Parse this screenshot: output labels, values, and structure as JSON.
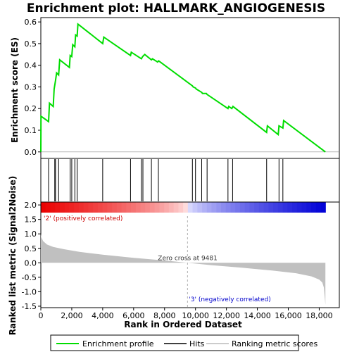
{
  "chart_data": {
    "type": "line",
    "title": "Enrichment plot: HALLMARK_ANGIOGENESIS",
    "es_panel": {
      "ylabel": "Enrichment score (ES)",
      "ylim": [
        -0.03,
        0.62
      ],
      "yticks": [
        "0.0",
        "0.1",
        "0.2",
        "0.3",
        "0.4",
        "0.5",
        "0.6"
      ],
      "ytick_values": [
        0.0,
        0.1,
        0.2,
        0.3,
        0.4,
        0.5,
        0.6
      ],
      "x": [
        0,
        10,
        500,
        560,
        800,
        860,
        950,
        1020,
        1150,
        1220,
        1850,
        1900,
        2000,
        2060,
        2200,
        2250,
        2350,
        2400,
        4000,
        4070,
        5800,
        5850,
        6500,
        6580,
        6650,
        6720,
        7150,
        7220,
        7550,
        7620,
        9800,
        9850,
        10000,
        10050,
        10400,
        10450,
        10700,
        10750,
        12100,
        12150,
        12350,
        12420,
        14600,
        14650,
        15350,
        15400,
        15650,
        15700,
        18400
      ],
      "y": [
        0.0,
        0.165,
        0.14,
        0.225,
        0.21,
        0.29,
        0.33,
        0.365,
        0.355,
        0.425,
        0.39,
        0.445,
        0.44,
        0.495,
        0.485,
        0.54,
        0.535,
        0.59,
        0.5,
        0.53,
        0.445,
        0.46,
        0.43,
        0.44,
        0.445,
        0.45,
        0.425,
        0.43,
        0.415,
        0.42,
        0.305,
        0.3,
        0.295,
        0.29,
        0.275,
        0.27,
        0.27,
        0.265,
        0.2,
        0.21,
        0.2,
        0.21,
        0.09,
        0.12,
        0.08,
        0.12,
        0.11,
        0.145,
        0.0
      ]
    },
    "hits": [
      500,
      900,
      950,
      1150,
      1900,
      2000,
      2200,
      2350,
      4000,
      5800,
      6500,
      6600,
      7150,
      7600,
      9800,
      10000,
      10400,
      10750,
      12100,
      12400,
      14600,
      15400,
      15650
    ],
    "ranking_panel": {
      "ylabel": "Ranked list metric (Signal2Noise)",
      "ylim": [
        -1.55,
        2.1
      ],
      "yticks": [
        "2.0",
        "1.5",
        "1.0",
        "0.5",
        "0.0",
        "-0.5",
        "-1.0",
        "-1.5"
      ],
      "ytick_values": [
        2.0,
        1.5,
        1.0,
        0.5,
        0.0,
        -0.5,
        -1.0,
        -1.5
      ],
      "x": [
        0,
        30,
        150,
        400,
        800,
        1500,
        2500,
        4000,
        6000,
        8000,
        9481,
        11000,
        13000,
        15000,
        16500,
        17500,
        18000,
        18200,
        18300,
        18400
      ],
      "y": [
        1.0,
        0.88,
        0.75,
        0.63,
        0.55,
        0.47,
        0.38,
        0.28,
        0.17,
        0.08,
        0.0,
        -0.08,
        -0.17,
        -0.27,
        -0.36,
        -0.47,
        -0.58,
        -0.68,
        -0.85,
        -1.45
      ]
    },
    "xlabel": "Rank in Ordered Dataset",
    "xlim": [
      0,
      19300
    ],
    "xticks": [
      "0",
      "2,000",
      "4,000",
      "6,000",
      "8,000",
      "10,000",
      "12,000",
      "14,000",
      "16,000",
      "18,000"
    ],
    "xtick_values": [
      0,
      2000,
      4000,
      6000,
      8000,
      10000,
      12000,
      14000,
      16000,
      18000
    ],
    "n_genes": 18400,
    "zero_cross": 9481,
    "zero_cross_label": "Zero cross at 9481",
    "pos_label": "'2' (positively correlated)",
    "neg_label": "'3' (negatively correlated)",
    "legend": [
      {
        "name": "Enrichment profile",
        "color": "#00dd00"
      },
      {
        "name": "Hits",
        "color": "#000000"
      },
      {
        "name": "Ranking metric scores",
        "color": "#bbbbbb"
      }
    ],
    "colors": {
      "profile": "#00dd00",
      "hit": "#000000",
      "metric_fill": "#c0c0c0",
      "pos_label": "#cc0000",
      "neg_label": "#0000cc"
    }
  }
}
